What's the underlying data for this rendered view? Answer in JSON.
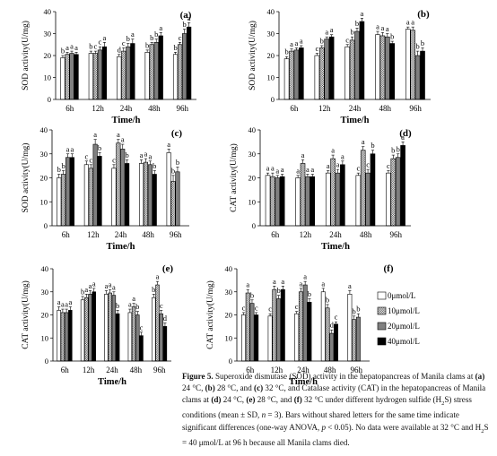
{
  "legend": [
    "0μmol/L",
    "10μmol/L",
    "20μmol/L",
    "40μmol/L"
  ],
  "series_fills": [
    "#ffffff",
    "pattern-dots",
    "#7f7f7f",
    "#000000"
  ],
  "chart_data": [
    {
      "type": "bar",
      "panel": "(a)",
      "categories": [
        "6h",
        "12h",
        "24h",
        "48h",
        "96h"
      ],
      "xlabel": "Time/h",
      "ylabel": "SOD activity(U/mg)",
      "ylim": [
        0,
        40
      ],
      "yticks": [
        0,
        10,
        20,
        30,
        40
      ],
      "grid": false,
      "series": [
        {
          "values": [
            19,
            21,
            19.5,
            21.5,
            20.5
          ],
          "errors": [
            1,
            1,
            1,
            1,
            1
          ],
          "letters": [
            "b",
            "b",
            "d",
            "b",
            "b"
          ]
        },
        {
          "values": [
            20.5,
            21,
            22,
            25,
            25
          ],
          "errors": [
            1,
            1,
            1.5,
            1,
            1
          ],
          "letters": [
            "a",
            "c",
            "c",
            "b",
            "c"
          ]
        },
        {
          "values": [
            21,
            22.5,
            24,
            26,
            30
          ],
          "errors": [
            1,
            1.5,
            1.5,
            1.5,
            2
          ],
          "letters": [
            "a",
            "c",
            "b",
            "b",
            "b"
          ]
        },
        {
          "values": [
            20.5,
            24,
            25.5,
            29,
            33
          ],
          "errors": [
            1,
            2,
            2,
            1.5,
            2
          ],
          "letters": [
            "a",
            "a",
            "a",
            "a",
            "a"
          ]
        }
      ]
    },
    {
      "type": "bar",
      "panel": "(b)",
      "categories": [
        "6h",
        "12h",
        "24h",
        "48h",
        "96h"
      ],
      "xlabel": "Time/h",
      "ylabel": "SOD activity(U/mg)",
      "ylim": [
        0,
        40
      ],
      "yticks": [
        0,
        10,
        20,
        30,
        40
      ],
      "grid": false,
      "series": [
        {
          "values": [
            18.5,
            20,
            24,
            29.5,
            32
          ],
          "errors": [
            1,
            1,
            1,
            1.5,
            1
          ],
          "letters": [
            "b",
            "c",
            "c",
            "a",
            "a"
          ]
        },
        {
          "values": [
            22,
            23.5,
            27,
            29,
            31.5
          ],
          "errors": [
            1,
            1,
            1.5,
            1.5,
            1.5
          ],
          "letters": [
            "a",
            "b",
            "b",
            "a",
            "a"
          ]
        },
        {
          "values": [
            22.5,
            27.5,
            31,
            28.5,
            20
          ],
          "errors": [
            1,
            1,
            1.5,
            1.5,
            2
          ],
          "letters": [
            "a",
            "a",
            "b",
            "a",
            "b"
          ]
        },
        {
          "values": [
            23.5,
            28.5,
            35.5,
            25.5,
            22
          ],
          "errors": [
            1,
            1,
            1.5,
            1,
            1.5
          ],
          "letters": [
            "a",
            "a",
            "a",
            "b",
            "b"
          ]
        }
      ]
    },
    {
      "type": "bar",
      "panel": "(c)",
      "categories": [
        "6h",
        "12h",
        "24h",
        "48h",
        "96h"
      ],
      "xlabel": "Time/h",
      "ylabel": "SOD activity(U/mg)",
      "ylim": [
        0,
        40
      ],
      "yticks": [
        0,
        10,
        20,
        30,
        40
      ],
      "grid": false,
      "series": [
        {
          "values": [
            20,
            25.5,
            24,
            26,
            30.5
          ],
          "errors": [
            1.5,
            1.5,
            1.5,
            1.5,
            1.5
          ],
          "letters": [
            "b",
            "c",
            "c",
            "a",
            "a"
          ]
        },
        {
          "values": [
            21.5,
            24,
            34.5,
            26.5,
            18.5
          ],
          "errors": [
            1.5,
            1.5,
            1.5,
            1.5,
            2.5
          ],
          "letters": [
            "b",
            "c",
            "a",
            "a",
            "b"
          ]
        },
        {
          "values": [
            28.5,
            34,
            32,
            25.5,
            22.5
          ],
          "errors": [
            1.5,
            2,
            2,
            1.5,
            2
          ],
          "letters": [
            "a",
            "a",
            "a",
            "a",
            "b"
          ]
        },
        {
          "values": [
            28.5,
            29,
            26,
            21.5,
            null
          ],
          "errors": [
            1.5,
            1.5,
            1.5,
            1.5,
            null
          ],
          "letters": [
            "a",
            "b",
            "b",
            "b",
            ""
          ]
        }
      ]
    },
    {
      "type": "bar",
      "panel": "(d)",
      "categories": [
        "6h",
        "12h",
        "24h",
        "48h",
        "96h"
      ],
      "xlabel": "Time/h",
      "ylabel": "CAT activity(U/mg)",
      "ylim": [
        0,
        40
      ],
      "yticks": [
        0,
        10,
        20,
        30,
        40
      ],
      "grid": false,
      "series": [
        {
          "values": [
            21,
            20,
            22,
            21,
            22
          ],
          "errors": [
            1,
            1,
            1,
            1,
            1
          ],
          "letters": [
            "a",
            "a",
            "a",
            "c",
            "c"
          ]
        },
        {
          "values": [
            20.5,
            26,
            28,
            31.5,
            28
          ],
          "errors": [
            1.5,
            1.5,
            1.5,
            1.5,
            1.5
          ],
          "letters": [
            "a",
            "a",
            "a",
            "a",
            "b"
          ]
        },
        {
          "values": [
            20,
            20.5,
            22,
            22,
            28.5
          ],
          "errors": [
            1,
            1,
            1.5,
            1.5,
            1.5
          ],
          "letters": [
            "a",
            "a",
            "a",
            "c",
            "b"
          ]
        },
        {
          "values": [
            20.5,
            20.5,
            25.5,
            30,
            33.5
          ],
          "errors": [
            1,
            1,
            1.5,
            1.5,
            1.5
          ],
          "letters": [
            "a",
            "a",
            "a",
            "b",
            "a"
          ]
        }
      ]
    },
    {
      "type": "bar",
      "panel": "(e)",
      "categories": [
        "6h",
        "12h",
        "24h",
        "48h",
        "96h"
      ],
      "xlabel": "Time/h",
      "ylabel": "CAT activity(U/mg)",
      "ylim": [
        0,
        40
      ],
      "yticks": [
        0,
        10,
        20,
        30,
        40
      ],
      "grid": false,
      "series": [
        {
          "values": [
            22,
            26.5,
            29,
            21,
            27.5
          ],
          "errors": [
            1.5,
            1.5,
            1.5,
            1.5,
            1.5
          ],
          "letters": [
            "a",
            "b",
            "a",
            "a",
            "b"
          ]
        },
        {
          "values": [
            21,
            27.5,
            29.5,
            23.5,
            33
          ],
          "errors": [
            1.5,
            1.5,
            1.5,
            1.5,
            1.5
          ],
          "letters": [
            "a",
            "a",
            "a",
            "a",
            "a"
          ]
        },
        {
          "values": [
            21,
            29,
            28.5,
            20,
            20.5
          ],
          "errors": [
            1.5,
            1.5,
            1.5,
            1.5,
            1.5
          ],
          "letters": [
            "a",
            "a",
            "a",
            "b",
            "c"
          ]
        },
        {
          "values": [
            22,
            30,
            20.5,
            11,
            15
          ],
          "errors": [
            1.5,
            1.5,
            1.5,
            1.5,
            1.5
          ],
          "letters": [
            "a",
            "a",
            "b",
            "c",
            "d"
          ]
        }
      ]
    },
    {
      "type": "bar",
      "panel": "(f)",
      "categories": [
        "6h",
        "12h",
        "24h",
        "48h",
        "96h"
      ],
      "xlabel": "Time/h",
      "ylabel": "CAT activity(U/mg)",
      "ylim": [
        0,
        40
      ],
      "yticks": [
        0,
        10,
        20,
        30,
        40
      ],
      "grid": false,
      "series": [
        {
          "values": [
            20,
            19.5,
            20.5,
            30,
            29
          ],
          "errors": [
            1,
            1,
            1,
            1.5,
            1.5
          ],
          "letters": [
            "c",
            "c",
            "c",
            "a",
            "a"
          ]
        },
        {
          "values": [
            29.5,
            31,
            30,
            23,
            18
          ],
          "errors": [
            1.5,
            1.5,
            1.5,
            1.5,
            1.5
          ],
          "letters": [
            "a",
            "a",
            "a",
            "b",
            "b"
          ]
        },
        {
          "values": [
            25,
            27,
            33,
            12,
            19
          ],
          "errors": [
            1.5,
            1.5,
            1.5,
            1.5,
            1.5
          ],
          "letters": [
            "b",
            "b",
            "a",
            "d",
            "b"
          ]
        },
        {
          "values": [
            20,
            31,
            25.5,
            16,
            null
          ],
          "errors": [
            1,
            1.5,
            1.5,
            1,
            null
          ],
          "letters": [
            "c",
            "a",
            "b",
            "c",
            ""
          ]
        }
      ]
    }
  ],
  "caption": {
    "figure_label": "Figure 5.",
    "text_html": "Superoxide dismutase (SOD) activity in the hepatopancreas of Manila clams at <b>(a)</b> 24 °C, <b>(b)</b> 28 °C, and <b>(c)</b> 32 °C, and Catalase activity (CAT) in the hepatopancreas of Manila clams at <b>(d)</b> 24 °C, <b>(e)</b> 28 °C, and <b>(f)</b> 32 °C under different hydrogen sulfide (H<sub style=\"font-size:6.5px\">2</sub>S) stress conditions (mean ± SD, <i>n</i> = 3). Bars without shared letters for the same time indicate significant differences (one-way ANOVA, <i>p</i> &lt; 0.05). No data were available at 32 °C and H<sub style=\"font-size:6.5px\">2</sub>S = 40 μmol/L at 96 h because all Manila clams died."
  }
}
